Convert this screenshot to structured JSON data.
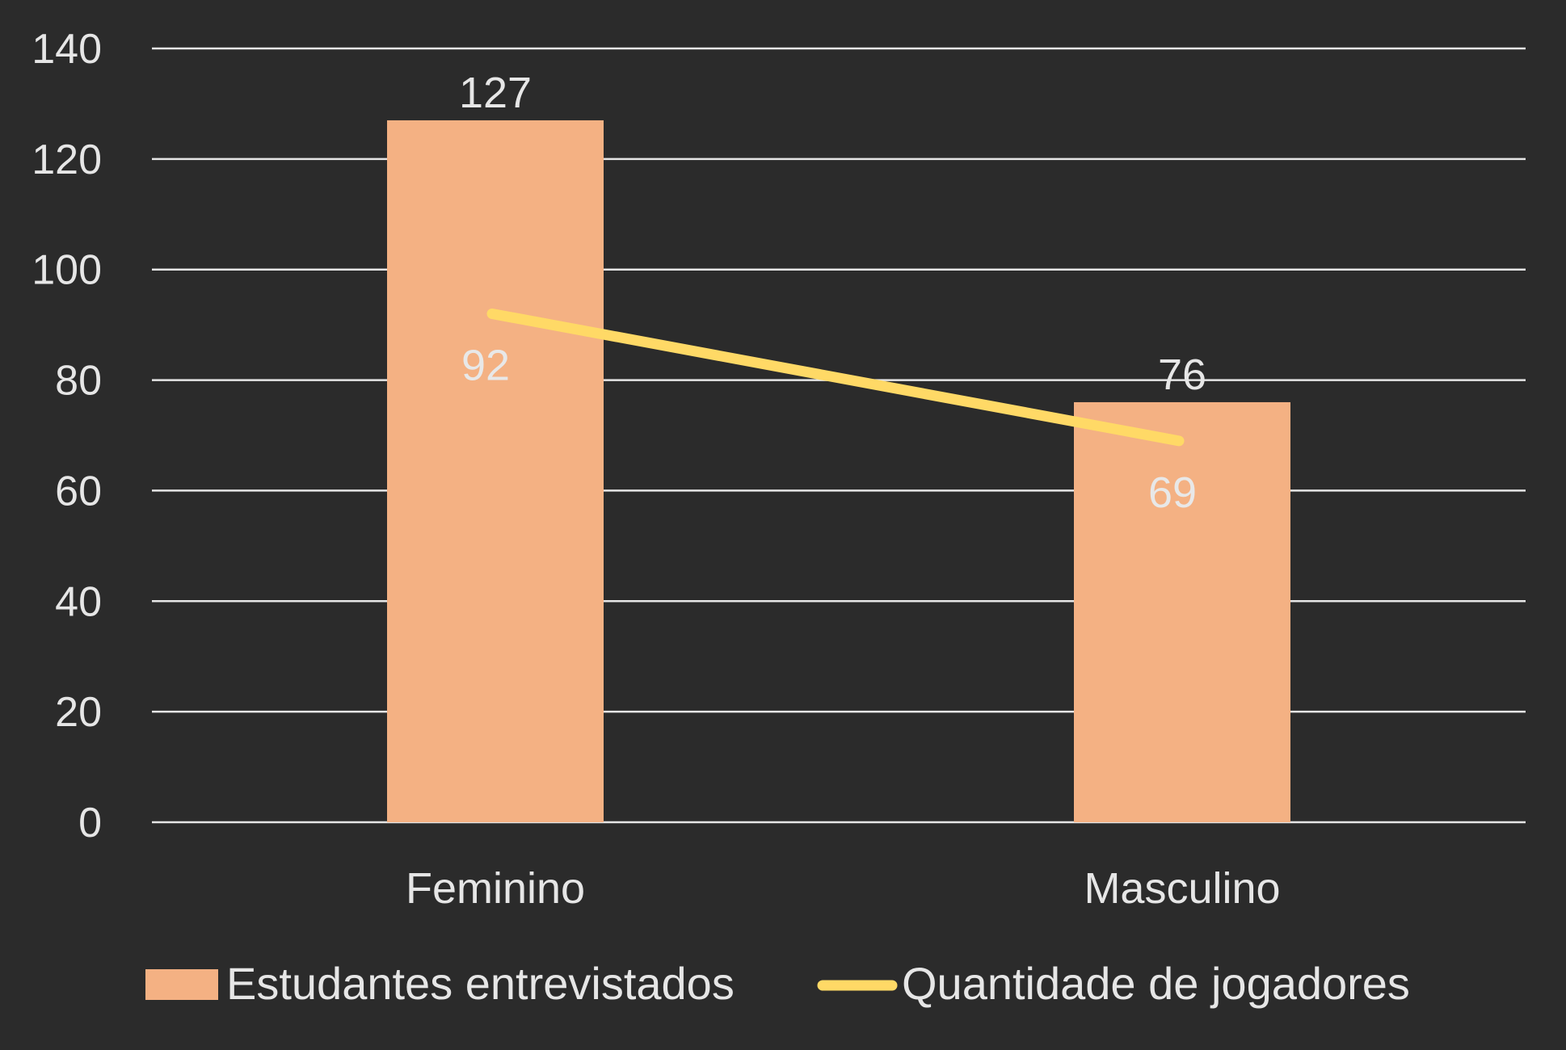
{
  "chart_data": {
    "type": "bar",
    "categories": [
      "Feminino",
      "Masculino"
    ],
    "ylim": [
      0,
      140
    ],
    "yticks": [
      0,
      20,
      40,
      60,
      80,
      100,
      120,
      140
    ],
    "grid": true,
    "legend_position": "bottom",
    "series": [
      {
        "name": "Estudantes entrevistados",
        "kind": "bar",
        "values": [
          127,
          76
        ],
        "color": "#f4b183"
      },
      {
        "name": "Quantidade de jogadores",
        "kind": "line",
        "values": [
          92,
          69
        ],
        "color": "#ffd966"
      }
    ],
    "background_color": "#2b2b2b",
    "grid_color": "#e6e6e6",
    "text_color": "#e6e6e6"
  }
}
